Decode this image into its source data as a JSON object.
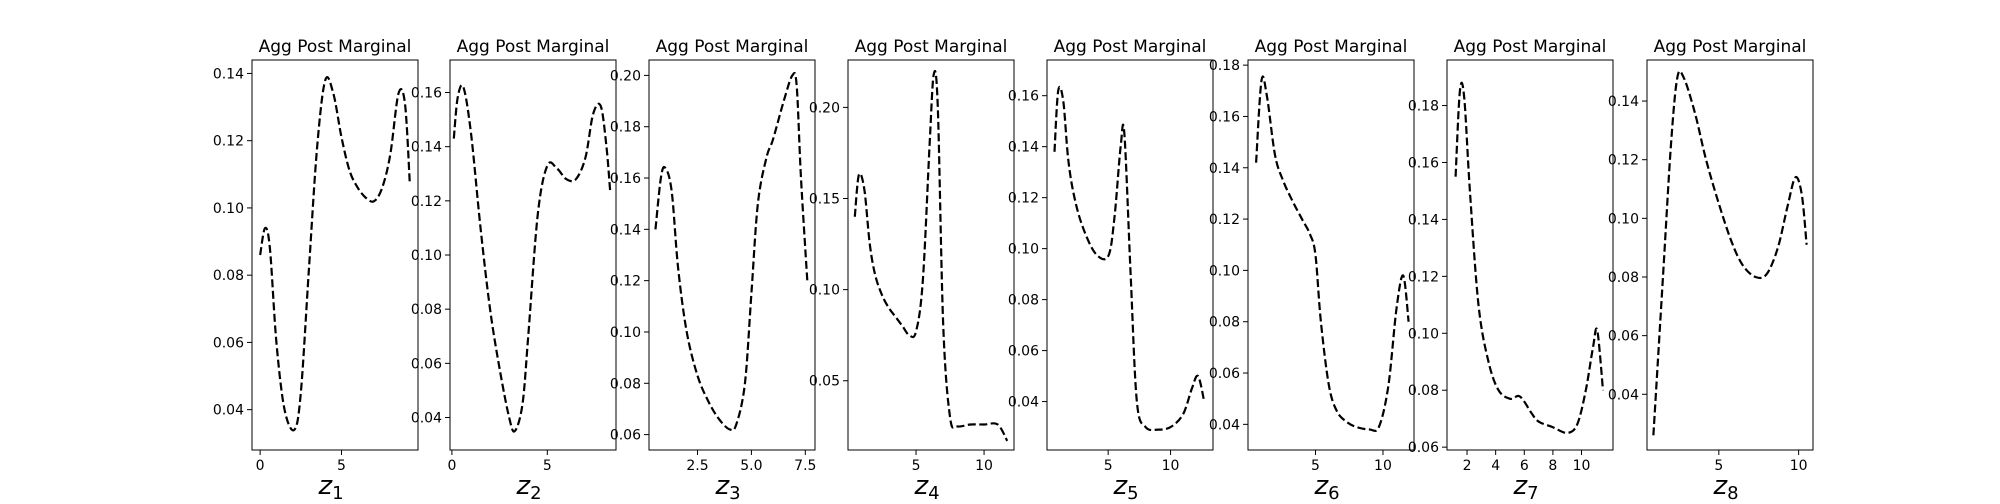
{
  "chart_data": [
    {
      "type": "line",
      "title": "Agg Post Marginal",
      "xlabel": {
        "var": "z",
        "sub": "1"
      },
      "xlim": [
        -0.5,
        9.7
      ],
      "ylim": [
        0.028,
        0.144
      ],
      "xticks": [
        {
          "v": 0,
          "label": "0"
        },
        {
          "v": 5,
          "label": "5"
        }
      ],
      "yticks": [
        {
          "v": 0.04,
          "label": "0.04"
        },
        {
          "v": 0.06,
          "label": "0.06"
        },
        {
          "v": 0.08,
          "label": "0.08"
        },
        {
          "v": 0.1,
          "label": "0.10"
        },
        {
          "v": 0.12,
          "label": "0.12"
        },
        {
          "v": 0.14,
          "label": "0.14"
        }
      ],
      "x": [
        0.0,
        0.3,
        0.6,
        1.0,
        1.5,
        2.1,
        2.5,
        3.0,
        3.5,
        4.0,
        4.5,
        5.0,
        5.5,
        6.0,
        6.5,
        7.0,
        7.5,
        8.0,
        8.5,
        8.9,
        9.2
      ],
      "y": [
        0.086,
        0.094,
        0.088,
        0.06,
        0.04,
        0.034,
        0.045,
        0.082,
        0.118,
        0.138,
        0.134,
        0.121,
        0.111,
        0.106,
        0.103,
        0.102,
        0.106,
        0.116,
        0.134,
        0.131,
        0.107
      ]
    },
    {
      "type": "line",
      "title": "Agg Post Marginal",
      "xlabel": {
        "var": "z",
        "sub": "2"
      },
      "xlim": [
        -0.1,
        8.6
      ],
      "ylim": [
        0.028,
        0.172
      ],
      "xticks": [
        {
          "v": 0,
          "label": "0"
        },
        {
          "v": 5,
          "label": "5"
        }
      ],
      "yticks": [
        {
          "v": 0.04,
          "label": "0.04"
        },
        {
          "v": 0.06,
          "label": "0.06"
        },
        {
          "v": 0.08,
          "label": "0.08"
        },
        {
          "v": 0.1,
          "label": "0.10"
        },
        {
          "v": 0.12,
          "label": "0.12"
        },
        {
          "v": 0.14,
          "label": "0.14"
        },
        {
          "v": 0.16,
          "label": "0.16"
        }
      ],
      "x": [
        0.1,
        0.3,
        0.6,
        1.0,
        1.5,
        2.0,
        2.5,
        3.0,
        3.3,
        3.7,
        4.0,
        4.5,
        5.0,
        5.5,
        6.0,
        6.5,
        7.0,
        7.4,
        7.8,
        8.1,
        8.3
      ],
      "y": [
        0.143,
        0.158,
        0.162,
        0.145,
        0.11,
        0.08,
        0.058,
        0.04,
        0.035,
        0.045,
        0.07,
        0.115,
        0.133,
        0.132,
        0.128,
        0.128,
        0.136,
        0.152,
        0.155,
        0.14,
        0.123
      ]
    },
    {
      "type": "line",
      "title": "Agg Post Marginal",
      "xlabel": {
        "var": "z",
        "sub": "3"
      },
      "xlim": [
        0.25,
        7.95
      ],
      "ylim": [
        0.054,
        0.206
      ],
      "xticks": [
        {
          "v": 2.5,
          "label": "2.5"
        },
        {
          "v": 5.0,
          "label": "5.0"
        },
        {
          "v": 7.5,
          "label": "7.5"
        }
      ],
      "yticks": [
        {
          "v": 0.06,
          "label": "0.06"
        },
        {
          "v": 0.08,
          "label": "0.08"
        },
        {
          "v": 0.1,
          "label": "0.10"
        },
        {
          "v": 0.12,
          "label": "0.12"
        },
        {
          "v": 0.14,
          "label": "0.14"
        },
        {
          "v": 0.16,
          "label": "0.16"
        },
        {
          "v": 0.18,
          "label": "0.18"
        },
        {
          "v": 0.2,
          "label": "0.20"
        }
      ],
      "x": [
        0.55,
        0.8,
        1.0,
        1.3,
        1.6,
        2.0,
        2.5,
        3.0,
        3.5,
        4.0,
        4.3,
        4.7,
        5.0,
        5.3,
        5.7,
        6.0,
        6.5,
        6.9,
        7.1,
        7.3,
        7.6
      ],
      "y": [
        0.14,
        0.16,
        0.164,
        0.155,
        0.125,
        0.1,
        0.083,
        0.073,
        0.066,
        0.062,
        0.064,
        0.08,
        0.115,
        0.15,
        0.168,
        0.175,
        0.19,
        0.2,
        0.196,
        0.16,
        0.119
      ]
    },
    {
      "type": "line",
      "title": "Agg Post Marginal",
      "xlabel": {
        "var": "z",
        "sub": "4"
      },
      "xlim": [
        0.0,
        12.2
      ],
      "ylim": [
        0.012,
        0.226
      ],
      "xticks": [
        {
          "v": 5,
          "label": "5"
        },
        {
          "v": 10,
          "label": "10"
        }
      ],
      "yticks": [
        {
          "v": 0.05,
          "label": "0.05"
        },
        {
          "v": 0.1,
          "label": "0.10"
        },
        {
          "v": 0.15,
          "label": "0.15"
        },
        {
          "v": 0.2,
          "label": "0.20"
        }
      ],
      "x": [
        0.5,
        0.8,
        1.2,
        1.6,
        2.0,
        2.5,
        3.0,
        3.5,
        4.0,
        4.5,
        5.0,
        5.5,
        6.0,
        6.3,
        6.6,
        7.0,
        7.5,
        8.0,
        9.0,
        10.0,
        11.0,
        11.7
      ],
      "y": [
        0.14,
        0.163,
        0.155,
        0.125,
        0.108,
        0.097,
        0.09,
        0.085,
        0.08,
        0.075,
        0.077,
        0.105,
        0.18,
        0.218,
        0.2,
        0.08,
        0.03,
        0.025,
        0.026,
        0.026,
        0.026,
        0.017
      ]
    },
    {
      "type": "line",
      "title": "Agg Post Marginal",
      "xlabel": {
        "var": "z",
        "sub": "5"
      },
      "xlim": [
        0.1,
        13.4
      ],
      "ylim": [
        0.021,
        0.174
      ],
      "xticks": [
        {
          "v": 5,
          "label": "5"
        },
        {
          "v": 10,
          "label": "10"
        }
      ],
      "yticks": [
        {
          "v": 0.04,
          "label": "0.04"
        },
        {
          "v": 0.06,
          "label": "0.06"
        },
        {
          "v": 0.08,
          "label": "0.08"
        },
        {
          "v": 0.1,
          "label": "0.10"
        },
        {
          "v": 0.12,
          "label": "0.12"
        },
        {
          "v": 0.14,
          "label": "0.14"
        },
        {
          "v": 0.16,
          "label": "0.16"
        }
      ],
      "x": [
        0.7,
        1.0,
        1.4,
        1.8,
        2.3,
        3.0,
        4.0,
        5.0,
        5.5,
        6.0,
        6.3,
        6.8,
        7.3,
        8.0,
        9.0,
        10.0,
        11.0,
        11.7,
        12.2,
        12.7
      ],
      "y": [
        0.138,
        0.162,
        0.158,
        0.135,
        0.12,
        0.108,
        0.098,
        0.097,
        0.112,
        0.14,
        0.145,
        0.09,
        0.04,
        0.03,
        0.029,
        0.03,
        0.035,
        0.045,
        0.05,
        0.04
      ]
    },
    {
      "type": "line",
      "title": "Agg Post Marginal",
      "xlabel": {
        "var": "z",
        "sub": "6"
      },
      "xlim": [
        0.0,
        12.3
      ],
      "ylim": [
        0.03,
        0.182
      ],
      "xticks": [
        {
          "v": 5,
          "label": "5"
        },
        {
          "v": 10,
          "label": "10"
        }
      ],
      "yticks": [
        {
          "v": 0.04,
          "label": "0.04"
        },
        {
          "v": 0.06,
          "label": "0.06"
        },
        {
          "v": 0.08,
          "label": "0.08"
        },
        {
          "v": 0.1,
          "label": "0.10"
        },
        {
          "v": 0.12,
          "label": "0.12"
        },
        {
          "v": 0.14,
          "label": "0.14"
        },
        {
          "v": 0.16,
          "label": "0.16"
        },
        {
          "v": 0.18,
          "label": "0.18"
        }
      ],
      "x": [
        0.6,
        1.0,
        1.4,
        2.0,
        2.6,
        3.3,
        4.0,
        4.6,
        5.0,
        5.4,
        6.0,
        6.6,
        7.3,
        8.0,
        9.0,
        9.7,
        10.4,
        11.0,
        11.5,
        11.9
      ],
      "y": [
        0.142,
        0.174,
        0.168,
        0.145,
        0.135,
        0.127,
        0.12,
        0.114,
        0.106,
        0.08,
        0.055,
        0.045,
        0.041,
        0.039,
        0.038,
        0.039,
        0.055,
        0.085,
        0.098,
        0.08
      ]
    },
    {
      "type": "line",
      "title": "Agg Post Marginal",
      "xlabel": {
        "var": "z",
        "sub": "7"
      },
      "xlim": [
        0.6,
        12.2
      ],
      "ylim": [
        0.059,
        0.196
      ],
      "xticks": [
        {
          "v": 2,
          "label": "2"
        },
        {
          "v": 4,
          "label": "4"
        },
        {
          "v": 6,
          "label": "6"
        },
        {
          "v": 8,
          "label": "8"
        },
        {
          "v": 10,
          "label": "10"
        }
      ],
      "yticks": [
        {
          "v": 0.06,
          "label": "0.06"
        },
        {
          "v": 0.08,
          "label": "0.08"
        },
        {
          "v": 0.1,
          "label": "0.10"
        },
        {
          "v": 0.12,
          "label": "0.12"
        },
        {
          "v": 0.14,
          "label": "0.14"
        },
        {
          "v": 0.16,
          "label": "0.16"
        },
        {
          "v": 0.18,
          "label": "0.18"
        }
      ],
      "x": [
        1.2,
        1.5,
        1.8,
        2.2,
        2.8,
        3.5,
        4.2,
        5.0,
        5.6,
        6.0,
        6.5,
        7.0,
        8.0,
        9.0,
        9.7,
        10.3,
        10.8,
        11.1,
        11.5
      ],
      "y": [
        0.155,
        0.185,
        0.183,
        0.15,
        0.11,
        0.09,
        0.08,
        0.077,
        0.078,
        0.076,
        0.072,
        0.069,
        0.067,
        0.065,
        0.068,
        0.08,
        0.095,
        0.101,
        0.08
      ]
    },
    {
      "type": "line",
      "title": "Agg Post Marginal",
      "xlabel": {
        "var": "z",
        "sub": "8"
      },
      "xlim": [
        0.5,
        10.9
      ],
      "ylim": [
        0.021,
        0.154
      ],
      "xticks": [
        {
          "v": 5,
          "label": "5"
        },
        {
          "v": 10,
          "label": "10"
        }
      ],
      "yticks": [
        {
          "v": 0.04,
          "label": "0.04"
        },
        {
          "v": 0.06,
          "label": "0.06"
        },
        {
          "v": 0.08,
          "label": "0.08"
        },
        {
          "v": 0.1,
          "label": "0.10"
        },
        {
          "v": 0.12,
          "label": "0.12"
        },
        {
          "v": 0.14,
          "label": "0.14"
        }
      ],
      "x": [
        0.9,
        1.5,
        2.0,
        2.4,
        2.8,
        3.5,
        4.2,
        5.0,
        5.8,
        6.5,
        7.3,
        8.0,
        8.7,
        9.3,
        9.8,
        10.2,
        10.5
      ],
      "y": [
        0.026,
        0.08,
        0.125,
        0.148,
        0.148,
        0.136,
        0.12,
        0.105,
        0.092,
        0.084,
        0.08,
        0.081,
        0.09,
        0.104,
        0.114,
        0.108,
        0.091
      ]
    }
  ]
}
